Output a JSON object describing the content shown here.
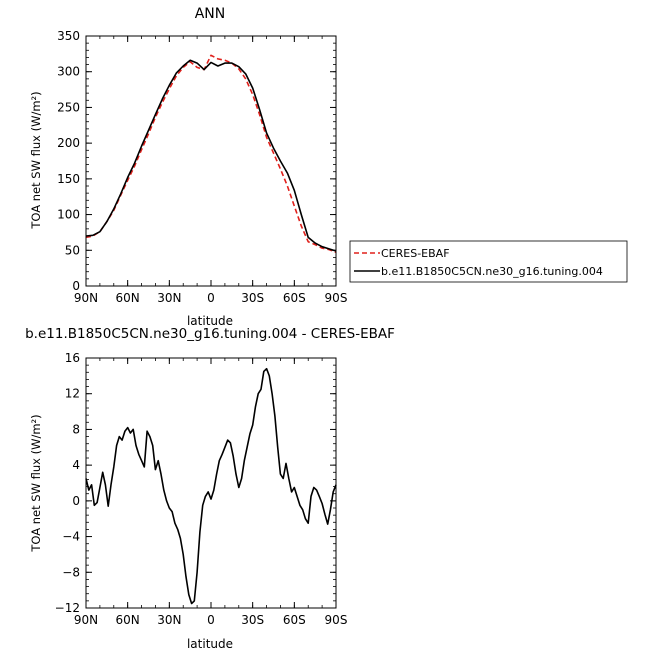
{
  "chart_data": [
    {
      "type": "line",
      "title": "ANN",
      "xlabel": "latitude",
      "ylabel": "TOA net SW flux (W/m²)",
      "xlim": [
        90,
        -90
      ],
      "ylim": [
        0,
        350
      ],
      "x_ticks": [
        90,
        60,
        30,
        0,
        -30,
        -60,
        -90
      ],
      "x_tick_labels": [
        "90N",
        "60N",
        "30N",
        "0",
        "30S",
        "60S",
        "90S"
      ],
      "y_ticks": [
        0,
        50,
        100,
        150,
        200,
        250,
        300,
        350
      ],
      "y_tick_labels": [
        "0",
        "50",
        "100",
        "150",
        "200",
        "250",
        "300",
        "350"
      ],
      "grid": false,
      "legend_placement": "right",
      "series": [
        {
          "name": "CERES-EBAF",
          "color": "#e0201b",
          "dash": "dashed",
          "x": [
            90,
            85,
            80,
            75,
            70,
            65,
            60,
            55,
            50,
            45,
            40,
            35,
            30,
            25,
            20,
            15,
            10,
            5,
            0,
            -5,
            -10,
            -15,
            -20,
            -25,
            -30,
            -35,
            -40,
            -45,
            -50,
            -55,
            -60,
            -65,
            -70,
            -75,
            -80,
            -85,
            -90
          ],
          "values": [
            68,
            70,
            76,
            90,
            106,
            127,
            148,
            168,
            191,
            213,
            236,
            257,
            276,
            294,
            306,
            314,
            306,
            303,
            323,
            318,
            316,
            312,
            304,
            290,
            268,
            240,
            208,
            186,
            164,
            140,
            112,
            84,
            62,
            58,
            53,
            51,
            47
          ]
        },
        {
          "name": "b.e11.B1850C5CN.ne30_g16.tuning.004",
          "color": "#000000",
          "dash": "solid",
          "x": [
            90,
            85,
            80,
            75,
            70,
            65,
            60,
            55,
            50,
            45,
            40,
            35,
            30,
            25,
            20,
            15,
            10,
            5,
            0,
            -5,
            -10,
            -15,
            -20,
            -25,
            -30,
            -35,
            -40,
            -45,
            -50,
            -55,
            -60,
            -65,
            -70,
            -75,
            -80,
            -85,
            -90
          ],
          "values": [
            70,
            71,
            76,
            90,
            108,
            129,
            152,
            172,
            196,
            218,
            240,
            262,
            281,
            298,
            308,
            316,
            312,
            303,
            313,
            308,
            312,
            312,
            307,
            297,
            277,
            247,
            214,
            193,
            175,
            158,
            134,
            100,
            68,
            60,
            55,
            52,
            49
          ]
        }
      ]
    },
    {
      "type": "line",
      "title": "b.e11.B1850C5CN.ne30_g16.tuning.004 - CERES-EBAF",
      "xlabel": "latitude",
      "ylabel": "TOA net SW flux (W/m²)",
      "xlim": [
        90,
        -90
      ],
      "ylim": [
        -12,
        16
      ],
      "x_ticks": [
        90,
        60,
        30,
        0,
        -30,
        -60,
        -90
      ],
      "x_tick_labels": [
        "90N",
        "60N",
        "30N",
        "0",
        "30S",
        "60S",
        "90S"
      ],
      "y_ticks": [
        -12,
        -8,
        -4,
        0,
        4,
        8,
        12,
        16
      ],
      "y_tick_labels": [
        "−12",
        "−8",
        "−4",
        "0",
        "4",
        "8",
        "12",
        "16"
      ],
      "grid": false,
      "series": [
        {
          "color": "#000000",
          "dash": "solid",
          "x": [
            90,
            88,
            86,
            84,
            82,
            80,
            78,
            76,
            74,
            72,
            70,
            68,
            66,
            64,
            62,
            60,
            58,
            56,
            54,
            52,
            50,
            48,
            46,
            44,
            42,
            40,
            38,
            36,
            34,
            32,
            30,
            28,
            26,
            24,
            22,
            20,
            18,
            16,
            14,
            12,
            10,
            8,
            6,
            4,
            2,
            0,
            -2,
            -4,
            -6,
            -8,
            -10,
            -12,
            -14,
            -16,
            -18,
            -20,
            -22,
            -24,
            -26,
            -28,
            -30,
            -32,
            -34,
            -36,
            -38,
            -40,
            -42,
            -44,
            -46,
            -48,
            -50,
            -52,
            -54,
            -56,
            -58,
            -60,
            -62,
            -64,
            -66,
            -68,
            -70,
            -72,
            -74,
            -76,
            -78,
            -80,
            -82,
            -84,
            -86,
            -88,
            -90
          ],
          "values": [
            2.5,
            1.2,
            1.8,
            -0.5,
            -0.2,
            1.5,
            3.2,
            1.8,
            -0.6,
            1.8,
            3.8,
            6.2,
            7.2,
            6.8,
            7.8,
            8.2,
            7.6,
            8.0,
            6.2,
            5.2,
            4.5,
            3.8,
            7.8,
            7.2,
            6.2,
            3.5,
            4.5,
            3.0,
            1.2,
            0.0,
            -0.8,
            -1.2,
            -2.5,
            -3.2,
            -4.2,
            -6.0,
            -8.5,
            -10.5,
            -11.5,
            -11.2,
            -8.0,
            -3.5,
            -0.5,
            0.5,
            1.0,
            0.2,
            1.2,
            3.0,
            4.5,
            5.2,
            6.0,
            6.8,
            6.5,
            5.0,
            3.0,
            1.5,
            2.5,
            4.5,
            6.0,
            7.5,
            8.5,
            10.5,
            12.0,
            12.5,
            14.5,
            14.8,
            14.0,
            12.0,
            9.5,
            6.0,
            3.0,
            2.5,
            4.2,
            2.5,
            1.0,
            1.5,
            0.5,
            -0.5,
            -1.0,
            -2.0,
            -2.5,
            0.5,
            1.5,
            1.2,
            0.5,
            -0.3,
            -1.5,
            -2.6,
            -1.0,
            1.0,
            1.8
          ]
        }
      ]
    }
  ]
}
